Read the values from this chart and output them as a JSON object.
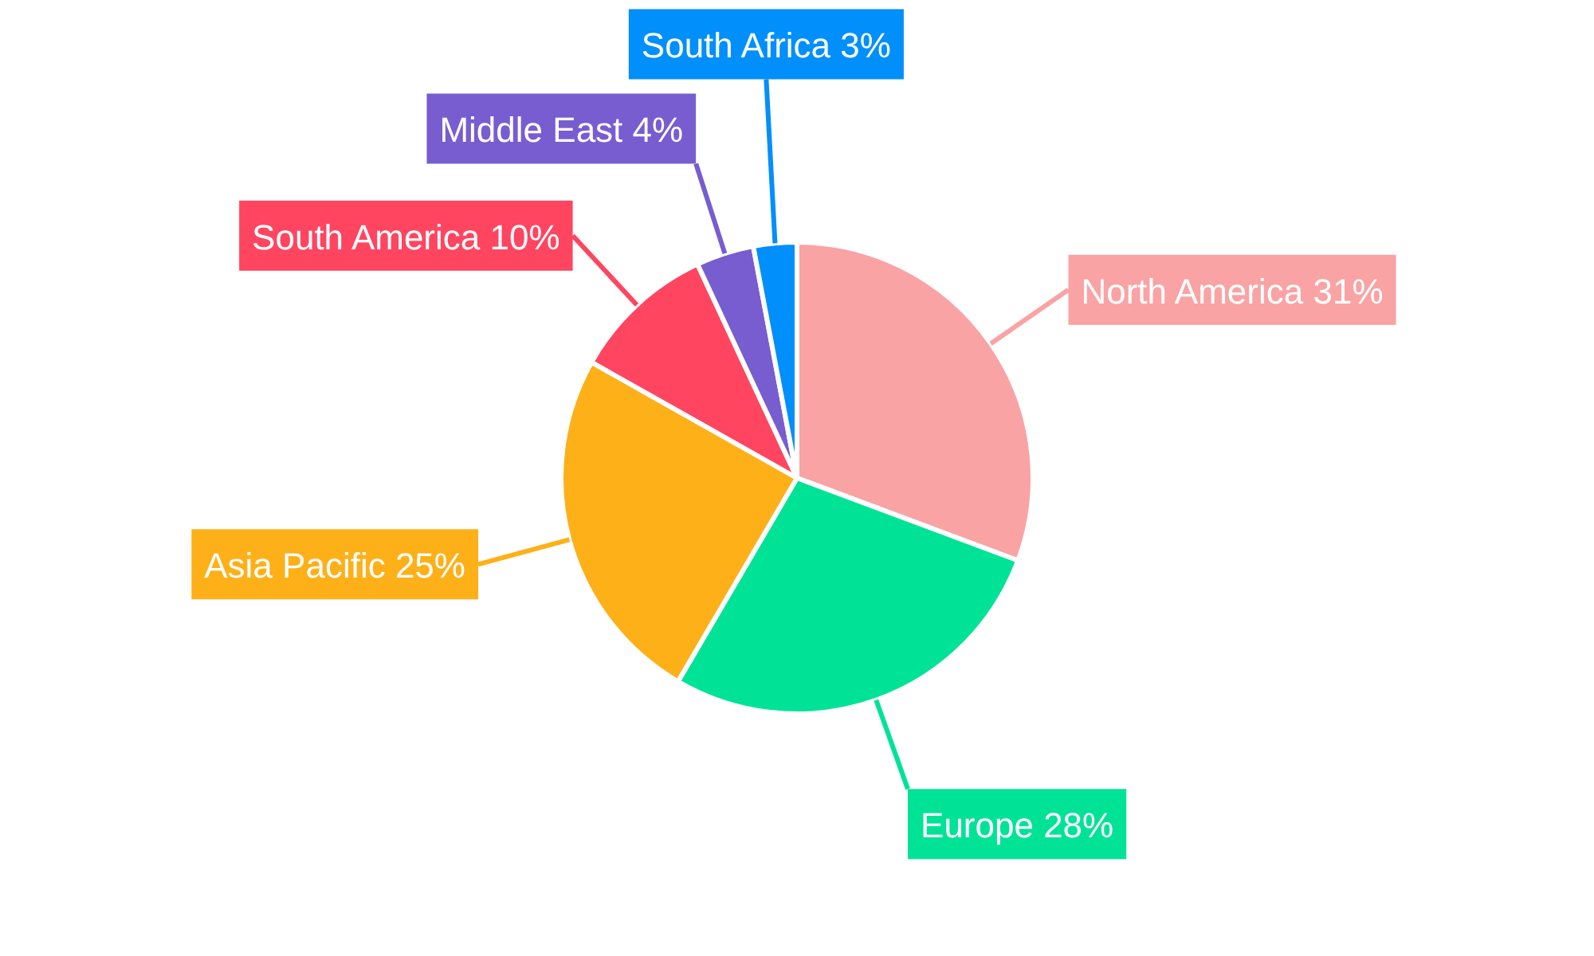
{
  "chart_data": {
    "type": "pie",
    "categories": [
      "North America",
      "Europe",
      "Asia Pacific",
      "South America",
      "Middle East",
      "South Africa"
    ],
    "values": [
      31,
      28,
      25,
      10,
      4,
      3
    ],
    "value_labels": [
      "31%",
      "28%",
      "25%",
      "10%",
      "4%",
      "3%"
    ],
    "colors": [
      "#f9a3a4",
      "#00e396",
      "#feb019",
      "#ff4560",
      "#775dd0",
      "#008ffb"
    ]
  }
}
